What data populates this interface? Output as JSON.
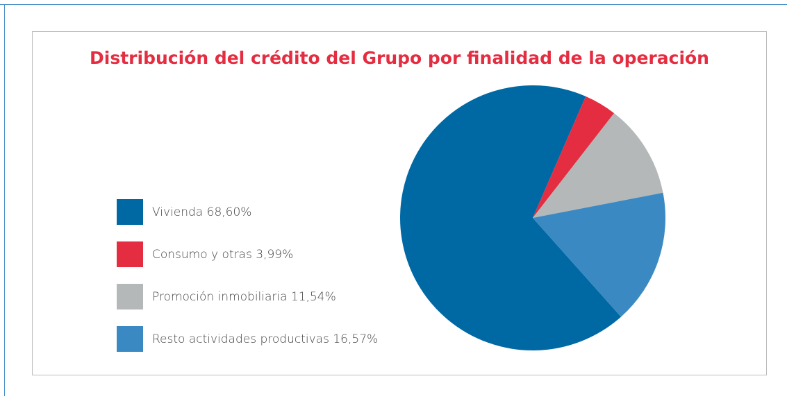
{
  "chart_data": {
    "type": "pie",
    "title": "Distribución del crédito del Grupo por finalidad de la operación",
    "categories": [
      "Vivienda",
      "Consumo y otras",
      "Promoción inmobiliaria",
      "Resto actividades productivas"
    ],
    "values": [
      68.6,
      3.99,
      11.54,
      16.57
    ],
    "value_labels": [
      "68,60%",
      "3,99%",
      "11,54%",
      "16,57%"
    ],
    "colors": [
      "#0069a4",
      "#e52d41",
      "#b4b8b8",
      "#3b89c3"
    ],
    "legend": "left"
  }
}
